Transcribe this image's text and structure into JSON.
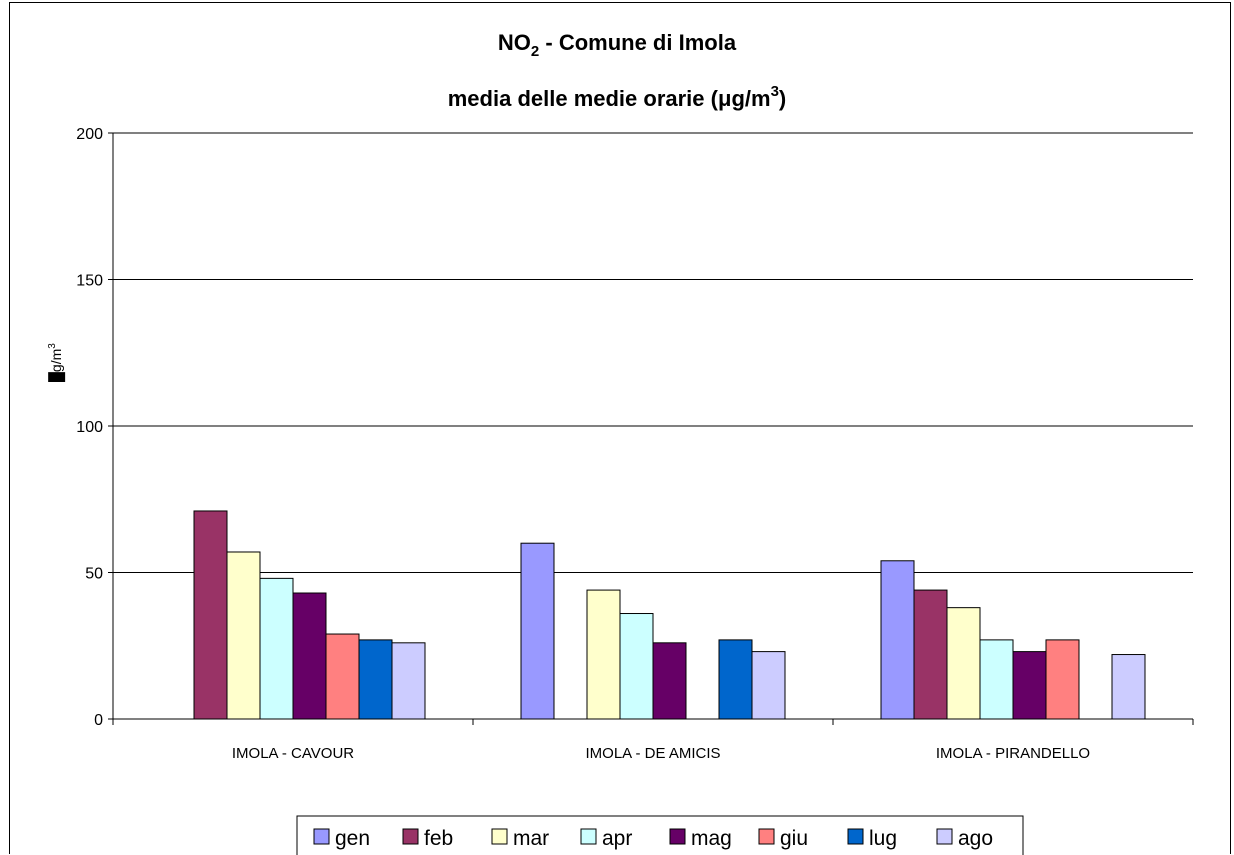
{
  "chart_data": {
    "type": "bar",
    "title_line1": {
      "pre": "NO",
      "sub": "2",
      "post": " - Comune di Imola"
    },
    "title_line2": {
      "pre": "media delle medie orarie (",
      "greek": "μ",
      "mid": "g/m",
      "sup": "3",
      "post": ")"
    },
    "ylabel": {
      "prefix": "█",
      "text": "g/m",
      "sup": "3"
    },
    "xlabel": "",
    "ylim": [
      0,
      200
    ],
    "yticks": [
      0,
      50,
      100,
      150,
      200
    ],
    "grid": true,
    "legend_position": "bottom",
    "categories": [
      "IMOLA - CAVOUR",
      "IMOLA - DE AMICIS",
      "IMOLA - PIRANDELLO"
    ],
    "series": [
      {
        "name": "gen",
        "color": "#9999ff",
        "values": [
          null,
          60,
          54
        ]
      },
      {
        "name": "feb",
        "color": "#993366",
        "values": [
          71,
          null,
          44
        ]
      },
      {
        "name": "mar",
        "color": "#ffffcc",
        "values": [
          57,
          44,
          38
        ]
      },
      {
        "name": "apr",
        "color": "#ccffff",
        "values": [
          48,
          36,
          27
        ]
      },
      {
        "name": "mag",
        "color": "#660066",
        "values": [
          43,
          26,
          23
        ]
      },
      {
        "name": "giu",
        "color": "#ff8080",
        "values": [
          29,
          null,
          27
        ]
      },
      {
        "name": "lug",
        "color": "#0066cc",
        "values": [
          27,
          27,
          null
        ]
      },
      {
        "name": "ago",
        "color": "#ccccff",
        "values": [
          26,
          23,
          22
        ]
      }
    ]
  }
}
